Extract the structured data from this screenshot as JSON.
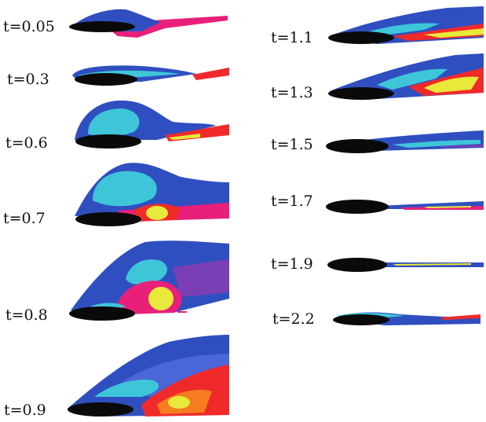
{
  "panels": [
    {
      "id": "p1",
      "label": "t=0.05"
    },
    {
      "id": "p2",
      "label": "t=0.3"
    },
    {
      "id": "p3",
      "label": "t=0.6"
    },
    {
      "id": "p4",
      "label": "t=0.7"
    },
    {
      "id": "p5",
      "label": "t=0.8"
    },
    {
      "id": "p6",
      "label": "t=0.9"
    },
    {
      "id": "p7",
      "label": "t=1.1"
    },
    {
      "id": "p8",
      "label": "t=1.3"
    },
    {
      "id": "p9",
      "label": "t=1.5"
    },
    {
      "id": "p10",
      "label": "t=1.7"
    },
    {
      "id": "p11",
      "label": "t=1.9"
    },
    {
      "id": "p12",
      "label": "t=2.2"
    }
  ],
  "colors": {
    "background": "#ffffff",
    "airfoil": "#0a0a0a",
    "outer_layer": "#2f4fc0",
    "mid_layer": "#4b66d6",
    "cyan": "#3ec6d8",
    "purple": "#7a3fb5",
    "magenta": "#e8207a",
    "red": "#f02a2a",
    "orange": "#f57d20",
    "yellow": "#e8e93a"
  }
}
